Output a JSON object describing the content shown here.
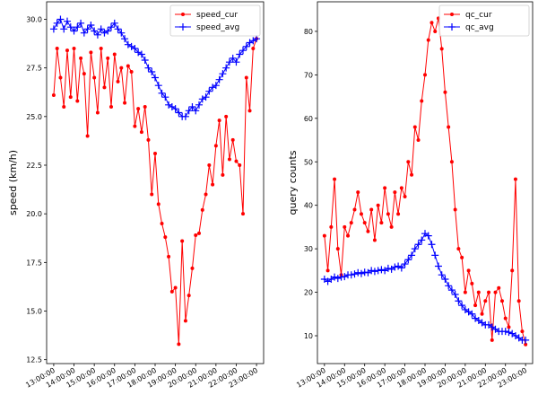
{
  "chart_data": [
    {
      "type": "line",
      "ylabel": "speed (km/h)",
      "legend": "upper right",
      "x": [
        "13:00:00",
        "13:10:00",
        "13:20:00",
        "13:30:00",
        "13:40:00",
        "13:50:00",
        "14:00:00",
        "14:10:00",
        "14:20:00",
        "14:30:00",
        "14:40:00",
        "14:50:00",
        "15:00:00",
        "15:10:00",
        "15:20:00",
        "15:30:00",
        "15:40:00",
        "15:50:00",
        "16:00:00",
        "16:10:00",
        "16:20:00",
        "16:30:00",
        "16:40:00",
        "16:50:00",
        "17:00:00",
        "17:10:00",
        "17:20:00",
        "17:30:00",
        "17:40:00",
        "17:50:00",
        "18:00:00",
        "18:10:00",
        "18:20:00",
        "18:30:00",
        "18:40:00",
        "18:50:00",
        "19:00:00",
        "19:10:00",
        "19:20:00",
        "19:30:00",
        "19:40:00",
        "19:50:00",
        "20:00:00",
        "20:10:00",
        "20:20:00",
        "20:30:00",
        "20:40:00",
        "20:50:00",
        "21:00:00",
        "21:10:00",
        "21:20:00",
        "21:30:00",
        "21:40:00",
        "21:50:00",
        "22:00:00",
        "22:10:00",
        "22:20:00",
        "22:30:00",
        "22:40:00",
        "22:50:00",
        "23:00:00"
      ],
      "series": [
        {
          "name": "speed_cur",
          "color": "#ff0000",
          "marker": "circle",
          "values": [
            26.1,
            28.5,
            27.0,
            25.5,
            28.4,
            26.0,
            28.5,
            25.8,
            28.0,
            27.2,
            24.0,
            28.3,
            27.0,
            25.2,
            28.5,
            26.5,
            28.0,
            25.5,
            28.2,
            26.8,
            27.5,
            25.7,
            27.6,
            27.3,
            24.5,
            25.4,
            24.2,
            25.5,
            23.8,
            21.0,
            23.1,
            20.5,
            19.5,
            18.8,
            17.8,
            16.0,
            16.2,
            13.3,
            18.6,
            14.5,
            15.8,
            17.2,
            18.9,
            19.0,
            20.2,
            21.0,
            22.5,
            21.5,
            23.5,
            24.8,
            22.0,
            25.0,
            22.8,
            23.8,
            22.7,
            22.5,
            20.0,
            27.0,
            25.3,
            28.5,
            29.0
          ]
        },
        {
          "name": "speed_avg",
          "color": "#0000ff",
          "marker": "plus",
          "values": [
            29.5,
            29.8,
            30.0,
            29.5,
            29.9,
            29.6,
            29.4,
            29.6,
            29.8,
            29.3,
            29.5,
            29.7,
            29.4,
            29.2,
            29.5,
            29.3,
            29.4,
            29.6,
            29.8,
            29.5,
            29.3,
            29.0,
            28.7,
            28.6,
            28.5,
            28.3,
            28.2,
            27.9,
            27.5,
            27.3,
            27.0,
            26.6,
            26.2,
            26.0,
            25.6,
            25.5,
            25.4,
            25.2,
            25.0,
            25.0,
            25.3,
            25.5,
            25.3,
            25.6,
            25.9,
            26.0,
            26.3,
            26.5,
            26.6,
            26.9,
            27.2,
            27.5,
            27.8,
            28.0,
            27.8,
            28.2,
            28.4,
            28.6,
            28.8,
            28.9,
            29.0
          ]
        }
      ],
      "xlim": [
        "12:39:00",
        "23:21:00"
      ],
      "xticks": [
        "13:00:00",
        "14:00:00",
        "15:00:00",
        "16:00:00",
        "17:00:00",
        "18:00:00",
        "19:00:00",
        "20:00:00",
        "21:00:00",
        "22:00:00",
        "23:00:00"
      ],
      "ylim": [
        12.3,
        30.9
      ],
      "yticks": [
        12.5,
        {
          "value": 15,
          "label": "15.0"
        },
        17.5,
        {
          "value": 20,
          "label": "20.0"
        },
        22.5,
        {
          "value": 25,
          "label": "25.0"
        },
        27.5,
        {
          "value": 30,
          "label": "30.0"
        }
      ]
    },
    {
      "type": "line",
      "ylabel": "query counts",
      "legend": "upper right",
      "x": [
        "13:00:00",
        "13:10:00",
        "13:20:00",
        "13:30:00",
        "13:40:00",
        "13:50:00",
        "14:00:00",
        "14:10:00",
        "14:20:00",
        "14:30:00",
        "14:40:00",
        "14:50:00",
        "15:00:00",
        "15:10:00",
        "15:20:00",
        "15:30:00",
        "15:40:00",
        "15:50:00",
        "16:00:00",
        "16:10:00",
        "16:20:00",
        "16:30:00",
        "16:40:00",
        "16:50:00",
        "17:00:00",
        "17:10:00",
        "17:20:00",
        "17:30:00",
        "17:40:00",
        "17:50:00",
        "18:00:00",
        "18:10:00",
        "18:20:00",
        "18:30:00",
        "18:40:00",
        "18:50:00",
        "19:00:00",
        "19:10:00",
        "19:20:00",
        "19:30:00",
        "19:40:00",
        "19:50:00",
        "20:00:00",
        "20:10:00",
        "20:20:00",
        "20:30:00",
        "20:40:00",
        "20:50:00",
        "21:00:00",
        "21:10:00",
        "21:20:00",
        "21:30:00",
        "21:40:00",
        "21:50:00",
        "22:00:00",
        "22:10:00",
        "22:20:00",
        "22:30:00",
        "22:40:00",
        "22:50:00",
        "23:00:00"
      ],
      "series": [
        {
          "name": "qc_cur",
          "color": "#ff0000",
          "marker": "circle",
          "values": [
            33,
            25,
            35,
            46,
            30,
            24,
            35,
            33,
            36,
            39,
            43,
            38,
            36,
            34,
            39,
            32,
            40,
            36,
            44,
            38,
            35,
            43,
            38,
            44,
            42,
            50,
            47,
            58,
            55,
            64,
            70,
            78,
            82,
            80,
            83,
            76,
            66,
            58,
            50,
            39,
            30,
            28,
            20,
            25,
            22,
            17,
            20,
            15,
            18,
            20,
            9,
            20,
            21,
            18,
            14,
            12,
            25,
            46,
            18,
            11,
            8
          ]
        },
        {
          "name": "qc_avg",
          "color": "#0000ff",
          "marker": "plus",
          "values": [
            23,
            22.5,
            23,
            23.5,
            23.2,
            23.5,
            23.6,
            24,
            24,
            24.2,
            24.5,
            24.3,
            24.6,
            24.5,
            25,
            24.8,
            25,
            25.2,
            25,
            25.5,
            25.3,
            25.8,
            26,
            25.6,
            26.5,
            27.5,
            28.5,
            30,
            31,
            32,
            33.5,
            33,
            31,
            28.5,
            26,
            24,
            23,
            21.5,
            20.5,
            19.5,
            18,
            17,
            16,
            15.5,
            15,
            14,
            13.5,
            13,
            12.5,
            12.5,
            12,
            11.5,
            11,
            11,
            11,
            10.8,
            10.5,
            10,
            9.5,
            9,
            9
          ]
        }
      ],
      "xlim": [
        "12:39:00",
        "23:21:00"
      ],
      "xticks": [
        "13:00:00",
        "14:00:00",
        "15:00:00",
        "16:00:00",
        "17:00:00",
        "18:00:00",
        "19:00:00",
        "20:00:00",
        "21:00:00",
        "22:00:00",
        "23:00:00"
      ],
      "ylim": [
        3.6,
        86.8
      ],
      "yticks": [
        10,
        20,
        30,
        40,
        50,
        60,
        70,
        80
      ]
    }
  ]
}
